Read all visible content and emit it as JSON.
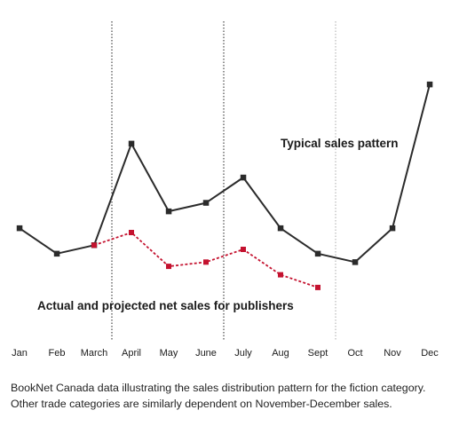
{
  "chart_data": {
    "type": "line",
    "categories": [
      "Jan",
      "Feb",
      "March",
      "April",
      "May",
      "June",
      "July",
      "Aug",
      "Sept",
      "Oct",
      "Nov",
      "Dec"
    ],
    "series": [
      {
        "name": "Typical sales pattern",
        "values": [
          7.0,
          4.0,
          5.0,
          17.0,
          9.0,
          10.0,
          13.0,
          7.0,
          4.0,
          3.0,
          7.0,
          24.0
        ],
        "color": "#2b2b2b",
        "style": "solid"
      },
      {
        "name": "Actual and projected net sales for publishers",
        "values": [
          null,
          null,
          5.0,
          6.5,
          2.5,
          3.0,
          4.5,
          1.5,
          0.0,
          null,
          null,
          null
        ],
        "color": "#c4122f",
        "style": "dashed"
      }
    ],
    "ylim": [
      -2,
      28
    ],
    "grid": false,
    "legend": "inline labels",
    "vertical_markers": [
      {
        "position": "between March and April",
        "color": "#222222"
      },
      {
        "position": "between June and July",
        "color": "#222222"
      },
      {
        "position": "between Sept and Oct",
        "color": "#aaaaaa"
      }
    ]
  },
  "caption": {
    "line1": "BookNet Canada data illustrating the sales distribution pattern for the fiction category.",
    "line2": "Other trade categories are similarly dependent on November-December sales."
  }
}
